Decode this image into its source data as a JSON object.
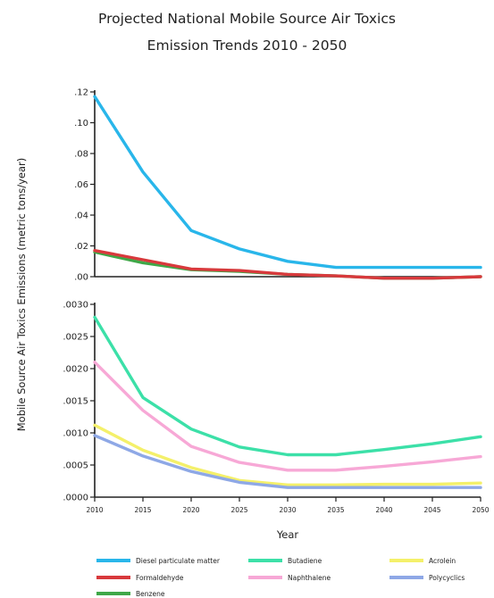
{
  "title_lines": [
    "Projected National Mobile Source Air Toxics",
    "Emission Trends 2010 - 2050"
  ],
  "chart_data": {
    "type": "line",
    "title": "Projected National Mobile Source Air Toxics Emission Trends 2010 - 2050",
    "xlabel": "Year",
    "ylabel": "Mobile  Source Air Toxics Emissions (metric tons/year)",
    "x": [
      2010,
      2015,
      2020,
      2025,
      2030,
      2035,
      2040,
      2045,
      2050
    ],
    "x_tick_labels": [
      "2010",
      "2015",
      "2020",
      "2025",
      "2030",
      "2035",
      "2040",
      "2045",
      "2050"
    ],
    "panels": [
      {
        "ylim": [
          0,
          0.12
        ],
        "y_ticks": [
          0,
          0.02,
          0.04,
          0.06,
          0.08,
          0.1,
          0.12
        ],
        "y_tick_labels": [
          ".00",
          ".02",
          ".04",
          ".06",
          ".08",
          ".10",
          ".12"
        ],
        "series": [
          {
            "name": "Diesel particulate matter",
            "color": "#29b6ea",
            "values": [
              0.117,
              0.068,
              0.03,
              0.018,
              0.01,
              0.006,
              0.006,
              0.006,
              0.006
            ]
          },
          {
            "name": "Benzene",
            "color": "#3fa848",
            "values": [
              0.016,
              0.009,
              0.0045,
              0.0035,
              0.0015,
              0.0005,
              -0.001,
              -0.001,
              0.0
            ]
          },
          {
            "name": "Formaldehyde",
            "color": "#d8393c",
            "values": [
              0.017,
              0.011,
              0.005,
              0.004,
              0.0015,
              0.0005,
              -0.001,
              -0.001,
              0.0
            ]
          }
        ]
      },
      {
        "ylim": [
          0,
          0.003
        ],
        "y_ticks": [
          0,
          0.0005,
          0.001,
          0.0015,
          0.002,
          0.0025,
          0.003
        ],
        "y_tick_labels": [
          ".0000",
          ".0005",
          ".0010",
          ".0015",
          ".0020",
          ".0025",
          ".0030"
        ],
        "series": [
          {
            "name": "Butadiene",
            "color": "#3ce0a8",
            "values": [
              0.0028,
              0.00155,
              0.00106,
              0.00078,
              0.00066,
              0.00066,
              0.00074,
              0.00083,
              0.00094
            ]
          },
          {
            "name": "Naphthalene",
            "color": "#f7a8d6",
            "values": [
              0.0021,
              0.00135,
              0.00079,
              0.00054,
              0.00042,
              0.00042,
              0.00048,
              0.00055,
              0.00063
            ]
          },
          {
            "name": "Acrolein",
            "color": "#f4f06a",
            "values": [
              0.00112,
              0.00073,
              0.00046,
              0.00026,
              0.00019,
              0.00019,
              0.0002,
              0.0002,
              0.00022
            ]
          },
          {
            "name": "Polycyclics",
            "color": "#8ea8e6",
            "values": [
              0.00096,
              0.00064,
              0.0004,
              0.00023,
              0.00015,
              0.00015,
              0.00015,
              0.00015,
              0.00015
            ]
          }
        ]
      }
    ],
    "legend": {
      "placement": "bottom",
      "entries": [
        {
          "label": "Diesel particulate matter",
          "color": "#29b6ea"
        },
        {
          "label": "Formaldehyde",
          "color": "#d8393c"
        },
        {
          "label": "Benzene",
          "color": "#3fa848"
        },
        {
          "label": "Butadiene",
          "color": "#3ce0a8"
        },
        {
          "label": "Naphthalene",
          "color": "#f7a8d6"
        },
        {
          "label": "Acrolein",
          "color": "#f4f06a"
        },
        {
          "label": "Polycyclics",
          "color": "#8ea8e6"
        }
      ]
    },
    "grid": false
  }
}
